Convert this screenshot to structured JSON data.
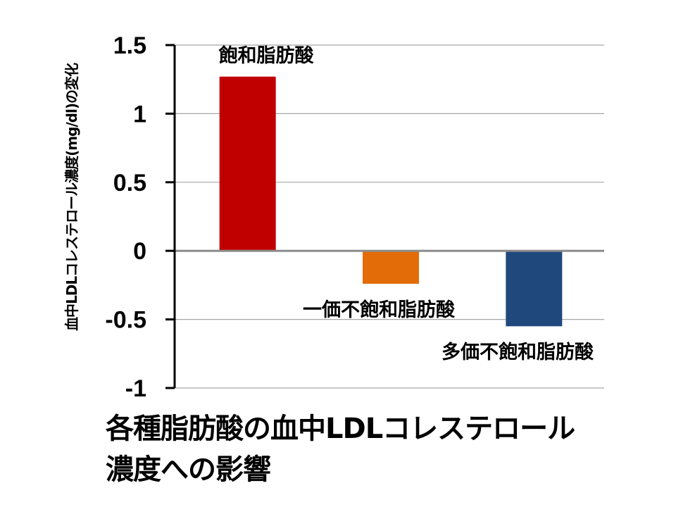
{
  "chart_data": {
    "type": "bar",
    "title": "各種脂肪酸の血中LDLコレステロール濃度への影響",
    "title_lines": [
      "各種脂肪酸の血中LDLコレステロール",
      "濃度への影響"
    ],
    "xlabel": "",
    "ylabel": "血中LDLコレステロール濃度(mg/dl)の変化",
    "categories": [
      "飽和脂肪酸",
      "一価不飽和脂肪酸",
      "多価不飽和脂肪酸"
    ],
    "values": [
      1.27,
      -0.24,
      -0.55
    ],
    "colors": [
      "#C00000",
      "#E36C09",
      "#1F497D"
    ],
    "ylim": [
      -1,
      1.5
    ],
    "yticks": [
      1.5,
      1,
      0.5,
      0,
      -0.5,
      -1
    ],
    "ytick_labels": [
      "1.5",
      "1",
      "0.5",
      "0",
      "-0.5",
      "-1"
    ],
    "grid": true,
    "legend": null
  }
}
